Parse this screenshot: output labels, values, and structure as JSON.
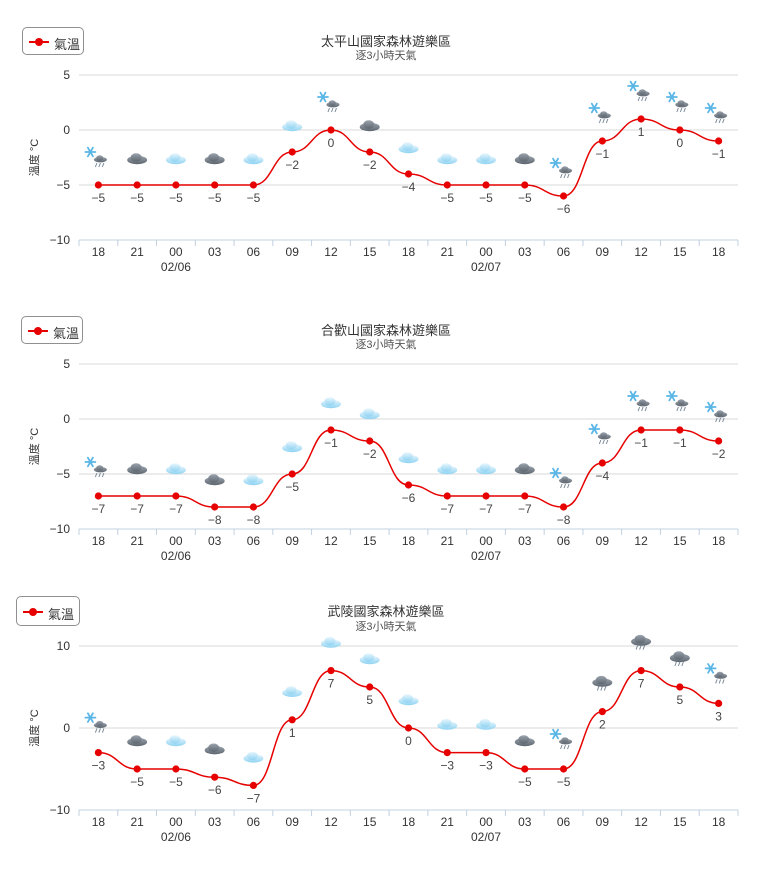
{
  "chart_data": [
    {
      "type": "line",
      "title": "太平山國家森林遊樂區",
      "subtitle": "逐3小時天氣",
      "ylabel": "溫度 °C",
      "ylim": [
        -10,
        5
      ],
      "yticks": [
        5,
        0,
        -5,
        -10
      ],
      "categories": [
        "18",
        "21",
        "00",
        "03",
        "06",
        "09",
        "12",
        "15",
        "18",
        "21",
        "00",
        "03",
        "06",
        "09",
        "12",
        "15",
        "18"
      ],
      "date_labels": [
        {
          "index": 2,
          "text": "02/06"
        },
        {
          "index": 10,
          "text": "02/07"
        }
      ],
      "series": [
        {
          "name": "氣溫",
          "values": [
            -5,
            -5,
            -5,
            -5,
            -5,
            -2,
            0,
            -2,
            -4,
            -5,
            -5,
            -5,
            -6,
            -1,
            1,
            0,
            -1
          ]
        }
      ],
      "icons": [
        "snow-icon",
        "cloudy-icon",
        "partly-cloudy-icon",
        "cloudy-icon",
        "partly-cloudy-icon",
        "partly-cloudy-icon",
        "snow-icon",
        "cloudy-icon",
        "partly-cloudy-icon",
        "partly-cloudy-icon",
        "partly-cloudy-icon",
        "cloudy-icon",
        "snow-icon",
        "snow-icon",
        "snow-icon",
        "snow-icon",
        "snow-icon"
      ],
      "legend": "top-left",
      "grid": true
    },
    {
      "type": "line",
      "title": "合歡山國家森林遊樂區",
      "subtitle": "逐3小時天氣",
      "ylabel": "溫度 °C",
      "ylim": [
        -10,
        5
      ],
      "yticks": [
        5,
        0,
        -5,
        -10
      ],
      "categories": [
        "18",
        "21",
        "00",
        "03",
        "06",
        "09",
        "12",
        "15",
        "18",
        "21",
        "00",
        "03",
        "06",
        "09",
        "12",
        "15",
        "18"
      ],
      "date_labels": [
        {
          "index": 2,
          "text": "02/06"
        },
        {
          "index": 10,
          "text": "02/07"
        }
      ],
      "series": [
        {
          "name": "氣溫",
          "values": [
            -7,
            -7,
            -7,
            -8,
            -8,
            -5,
            -1,
            -2,
            -6,
            -7,
            -7,
            -7,
            -8,
            -4,
            -1,
            -1,
            -2
          ]
        }
      ],
      "icons": [
        "snow-icon",
        "cloudy-icon",
        "partly-cloudy-icon",
        "cloudy-icon",
        "partly-cloudy-icon",
        "partly-cloudy-icon",
        "partly-cloudy-icon",
        "partly-cloudy-icon",
        "partly-cloudy-icon",
        "partly-cloudy-icon",
        "partly-cloudy-icon",
        "cloudy-icon",
        "snow-icon",
        "snow-icon",
        "snow-icon",
        "snow-icon",
        "snow-icon"
      ],
      "legend": "top-left",
      "grid": true
    },
    {
      "type": "line",
      "title": "武陵國家森林遊樂區",
      "subtitle": "逐3小時天氣",
      "ylabel": "溫度 °C",
      "ylim": [
        -10,
        10
      ],
      "yticks": [
        10,
        0,
        -10
      ],
      "categories": [
        "18",
        "21",
        "00",
        "03",
        "06",
        "09",
        "12",
        "15",
        "18",
        "21",
        "00",
        "03",
        "06",
        "09",
        "12",
        "15",
        "18"
      ],
      "date_labels": [
        {
          "index": 2,
          "text": "02/06"
        },
        {
          "index": 10,
          "text": "02/07"
        }
      ],
      "series": [
        {
          "name": "氣溫",
          "values": [
            -3,
            -5,
            -5,
            -6,
            -7,
            1,
            7,
            5,
            0,
            -3,
            -3,
            -5,
            -5,
            2,
            7,
            5,
            3
          ]
        }
      ],
      "icons": [
        "snow-icon",
        "cloudy-icon",
        "partly-cloudy-icon",
        "cloudy-icon",
        "partly-cloudy-icon",
        "partly-cloudy-icon",
        "partly-cloudy-icon",
        "partly-cloudy-icon",
        "partly-cloudy-icon",
        "partly-cloudy-icon",
        "partly-cloudy-icon",
        "cloudy-icon",
        "snow-icon",
        "rain-icon",
        "rain-icon",
        "rain-icon",
        "snow-icon"
      ],
      "legend": "top-left",
      "grid": true
    }
  ],
  "colors": {
    "line": "#e60000",
    "grid": "#d8d8d8",
    "axis": "#c0d0e0",
    "text": "#333333"
  }
}
